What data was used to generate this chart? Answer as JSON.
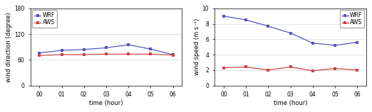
{
  "hours": [
    "00",
    "01",
    "02",
    "03",
    "04",
    "05",
    "06"
  ],
  "wind_dir_wrf": [
    76,
    82,
    84,
    88,
    95,
    85,
    72
  ],
  "wind_dir_aws": [
    70,
    72,
    72,
    73,
    73,
    73,
    71
  ],
  "wind_spd_wrf": [
    9.0,
    8.5,
    7.7,
    6.8,
    5.5,
    5.2,
    5.6
  ],
  "wind_spd_aws": [
    2.3,
    2.4,
    2.0,
    2.4,
    1.9,
    2.2,
    2.0
  ],
  "wrf_color": "#5555bb",
  "aws_color": "#cc4444",
  "marker": "s",
  "marker_size": 2.5,
  "linewidth": 0.9,
  "dir_ylim": [
    0,
    180
  ],
  "dir_yticks": [
    0,
    60,
    120,
    180
  ],
  "spd_ylim": [
    0,
    10
  ],
  "spd_yticks": [
    0,
    2,
    4,
    6,
    8,
    10
  ],
  "xlabel": "time (hour)",
  "ylabel_dir": "wind direction (degree)",
  "ylabel_spd": "wind speed (m s⁻¹)",
  "legend_labels": [
    "WRF",
    "AWS"
  ],
  "label_fontsize": 6,
  "tick_fontsize": 5.5,
  "legend_fontsize": 5.5
}
